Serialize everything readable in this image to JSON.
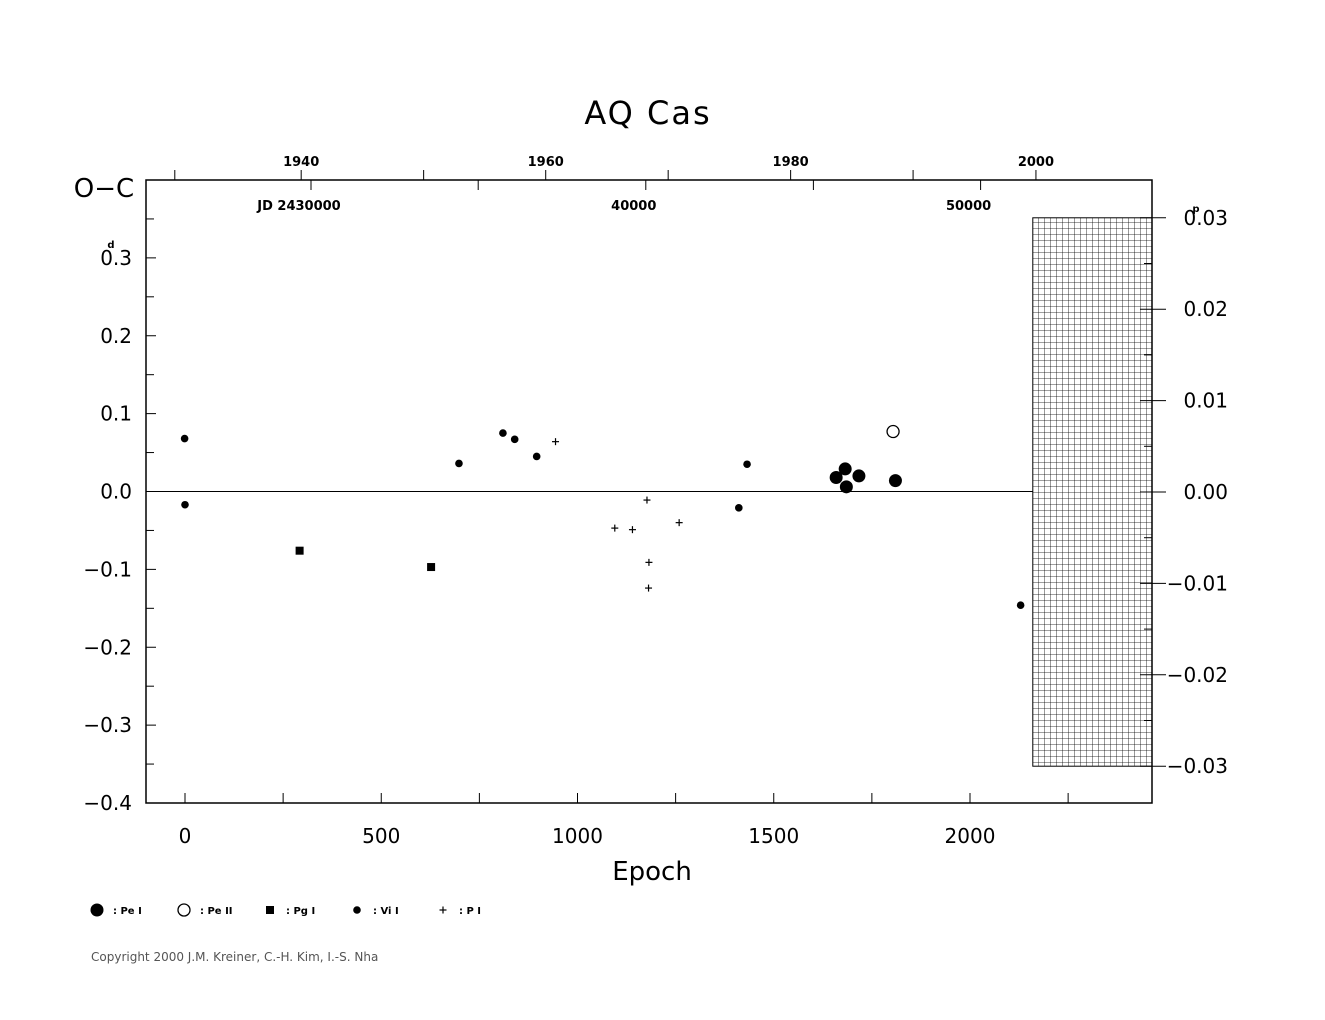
{
  "chart_data": {
    "type": "scatter",
    "title": "AQ Cas",
    "xlabel": "Epoch",
    "ylabel": "O−C",
    "y_unit": "d",
    "right_unit": "p",
    "x_range": [
      -100,
      2470
    ],
    "y_range": [
      -0.4,
      0.4
    ],
    "right_range": [
      -0.03,
      0.03
    ],
    "x_ticks": [
      0,
      500,
      1000,
      1500,
      2000
    ],
    "x_tick_labels": [
      "0",
      "500",
      "1000",
      "1500",
      "2000"
    ],
    "y_ticks": [
      -0.4,
      -0.3,
      -0.2,
      -0.1,
      0.0,
      0.1,
      0.2,
      0.3
    ],
    "y_tick_labels": [
      "−0.4",
      "−0.3",
      "−0.2",
      "−0.1",
      "0.0",
      "0.1",
      "0.2",
      "0.3"
    ],
    "right_ticks": [
      -0.03,
      -0.02,
      -0.01,
      0.0,
      0.01,
      0.02,
      0.03
    ],
    "right_tick_labels": [
      "−0.03",
      "−0.02",
      "−0.01",
      "0.00",
      "0.01",
      "0.02",
      "0.03"
    ],
    "year_ticks": [
      {
        "epoch": 296,
        "label": "1940"
      },
      {
        "epoch": 919,
        "label": "1960"
      },
      {
        "epoch": 1543,
        "label": "1980"
      },
      {
        "epoch": 2168,
        "label": "2000"
      }
    ],
    "jd_ticks": [
      {
        "epoch": 321,
        "label": "JD 2430000"
      },
      {
        "epoch": 1174,
        "label": "40000"
      },
      {
        "epoch": 2027,
        "label": "50000"
      }
    ],
    "hatched_region_epoch": [
      2160,
      2470
    ],
    "series": [
      {
        "name": "Pe I",
        "marker": "filled-circle-large",
        "points": [
          [
            1659,
            0.018
          ],
          [
            1682,
            0.029
          ],
          [
            1685,
            0.006
          ],
          [
            1717,
            0.02
          ],
          [
            1810,
            0.014
          ]
        ]
      },
      {
        "name": "Pe II",
        "marker": "open-circle",
        "points": [
          [
            1804,
            0.077
          ]
        ]
      },
      {
        "name": "Pg I",
        "marker": "filled-square",
        "points": [
          [
            292,
            -0.076
          ],
          [
            627,
            -0.097
          ]
        ]
      },
      {
        "name": "Vi I",
        "marker": "filled-circle-small",
        "points": [
          [
            -1,
            0.068
          ],
          [
            0,
            -0.017
          ],
          [
            698,
            0.036
          ],
          [
            810,
            0.075
          ],
          [
            840,
            0.067
          ],
          [
            896,
            0.045
          ],
          [
            1411,
            -0.021
          ],
          [
            1432,
            0.035
          ],
          [
            2129,
            -0.146
          ]
        ]
      },
      {
        "name": "P I",
        "marker": "plus",
        "points": [
          [
            944,
            0.064
          ],
          [
            1095,
            -0.047
          ],
          [
            1140,
            -0.049
          ],
          [
            1177,
            -0.011
          ],
          [
            1182,
            -0.091
          ],
          [
            1181,
            -0.124
          ],
          [
            1259,
            -0.04
          ]
        ]
      }
    ],
    "legend": {
      "position": "bottom-left",
      "items": [
        {
          "marker": "filled-circle-large",
          "label": ": Pe I"
        },
        {
          "marker": "open-circle",
          "label": ": Pe II"
        },
        {
          "marker": "filled-square",
          "label": ": Pg I"
        },
        {
          "marker": "filled-circle-small",
          "label": ": Vi I"
        },
        {
          "marker": "plus",
          "label": ": P I"
        }
      ]
    },
    "copyright": "Copyright 2000 J.M. Kreiner, C.-H. Kim, I.-S. Nha"
  }
}
